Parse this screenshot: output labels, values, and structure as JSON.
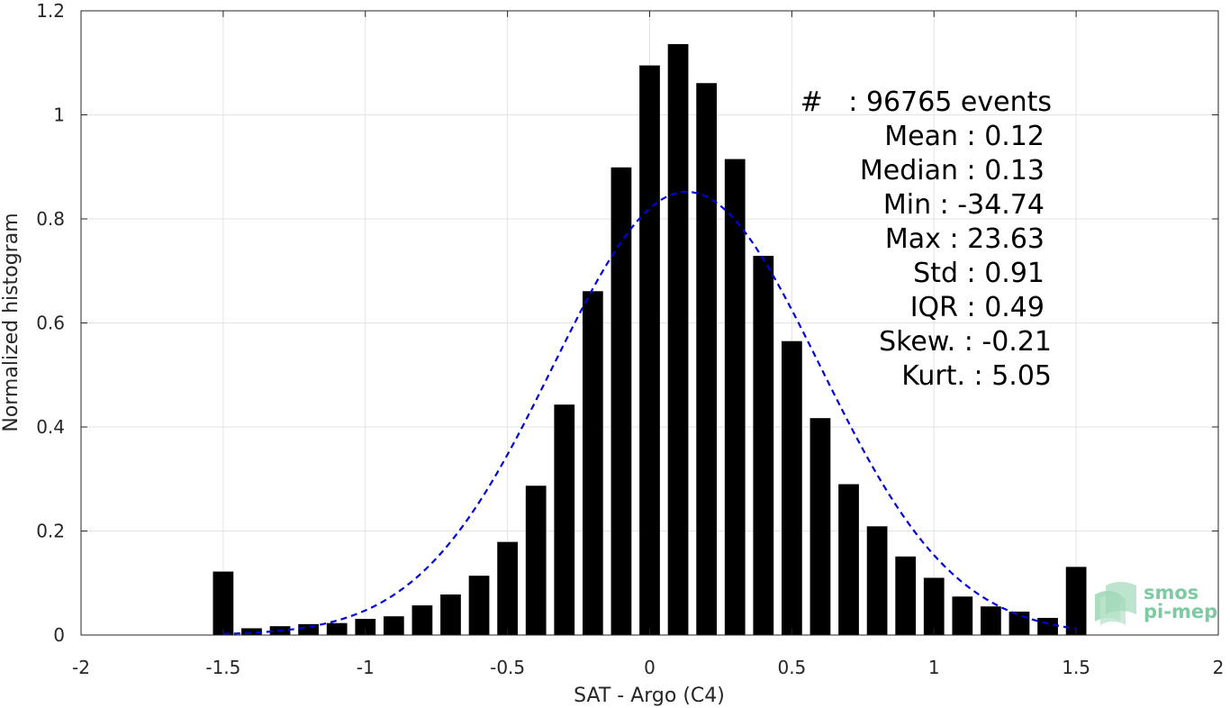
{
  "chart_data": {
    "type": "bar",
    "xlabel": "SAT - Argo (C4)",
    "ylabel": "Normalized histogram",
    "xlim": [
      -2,
      2
    ],
    "ylim": [
      0,
      1.2
    ],
    "xticks": [
      -2,
      -1.5,
      -1,
      -0.5,
      0,
      0.5,
      1,
      1.5,
      2
    ],
    "xtick_labels": [
      "-2",
      "-1.5",
      "-1",
      "-0.5",
      "0",
      "0.5",
      "1",
      "1.5",
      "2"
    ],
    "yticks": [
      0,
      0.2,
      0.4,
      0.6,
      0.8,
      1,
      1.2
    ],
    "ytick_labels": [
      "0",
      "0.2",
      "0.4",
      "0.6",
      "0.8",
      "1",
      "1.2"
    ],
    "grid": true,
    "bin_width": 0.1,
    "bar_centers": [
      -1.5,
      -1.4,
      -1.3,
      -1.2,
      -1.1,
      -1.0,
      -0.9,
      -0.8,
      -0.7,
      -0.6,
      -0.5,
      -0.4,
      -0.3,
      -0.2,
      -0.1,
      0.0,
      0.1,
      0.2,
      0.3,
      0.4,
      0.5,
      0.6,
      0.7,
      0.8,
      0.9,
      1.0,
      1.1,
      1.2,
      1.3,
      1.4,
      1.5
    ],
    "values": [
      0.122,
      0.013,
      0.017,
      0.021,
      0.023,
      0.031,
      0.036,
      0.057,
      0.078,
      0.114,
      0.179,
      0.287,
      0.443,
      0.661,
      0.899,
      1.095,
      1.136,
      1.061,
      0.915,
      0.729,
      0.565,
      0.417,
      0.29,
      0.209,
      0.151,
      0.11,
      0.074,
      0.055,
      0.045,
      0.033,
      0.131
    ],
    "bar_color": "#000000",
    "fit_curve": {
      "style": "dashed",
      "color": "#0000dd",
      "mean": 0.13,
      "sigma": 0.47,
      "peak": 0.852,
      "x_range": [
        -1.5,
        1.5
      ]
    }
  },
  "stats": {
    "events": "#   : 96765 events",
    "mean": "Mean : 0.12",
    "median": "Median : 0.13",
    "min": "Min : -34.74",
    "max": "Max : 23.63",
    "std": "Std : 0.91",
    "iqr": "IQR : 0.49",
    "skew": "Skew. : -0.21",
    "kurt": "Kurt. : 5.05"
  },
  "logo": {
    "line1": "smos",
    "line2": "pi-mep",
    "color": "#7fcaa2"
  }
}
